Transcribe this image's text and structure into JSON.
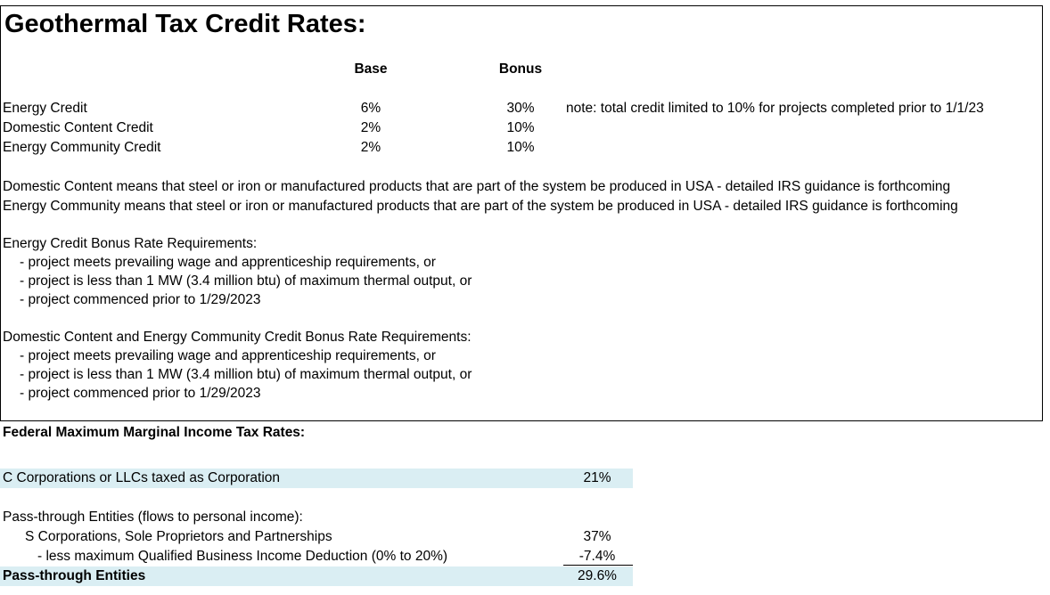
{
  "geo": {
    "title": "Geothermal Tax Credit Rates:",
    "col_base": "Base",
    "col_bonus": "Bonus",
    "rows": [
      {
        "label": "Energy Credit",
        "base": "6%",
        "bonus": "30%",
        "note": "note: total credit limited to 10% for projects completed prior to 1/1/23"
      },
      {
        "label": "Domestic Content Credit",
        "base": "2%",
        "bonus": "10%"
      },
      {
        "label": "Energy Community Credit",
        "base": "2%",
        "bonus": "10%"
      }
    ],
    "def_domestic": "Domestic Content means that steel or iron or manufactured products that are part of the system be produced in USA - detailed IRS guidance is forthcoming",
    "def_community": "Energy Community means that steel or iron or manufactured products that are part of the system be produced in USA - detailed IRS guidance is forthcoming",
    "req1": {
      "heading": "Energy Credit Bonus Rate Requirements:",
      "items": [
        "- project meets prevailing wage and apprenticeship requirements, or",
        "- project is less than 1 MW (3.4 million btu) of maximum thermal output, or",
        "- project commenced prior to 1/29/2023"
      ]
    },
    "req2": {
      "heading": "Domestic Content and Energy Community Credit Bonus Rate Requirements:",
      "items": [
        "- project meets prevailing wage and apprenticeship requirements, or",
        "- project is less than 1 MW (3.4 million btu) of maximum thermal output, or",
        "- project commenced prior to 1/29/2023"
      ]
    }
  },
  "fed": {
    "title": "Federal Maximum Marginal Income Tax Rates:",
    "c_corp_label": "C Corporations or LLCs taxed as Corporation",
    "c_corp_rate": "21%",
    "pass_heading": "Pass-through Entities (flows to personal income):",
    "s_corp_label": "S Corporations, Sole Proprietors and Partnerships",
    "s_corp_rate": "37%",
    "qbi_label": "- less maximum Qualified Business Income Deduction (0% to 20%)",
    "qbi_rate": "-7.4%",
    "total_label": "Pass-through Entities",
    "total_rate": "29.6%"
  }
}
